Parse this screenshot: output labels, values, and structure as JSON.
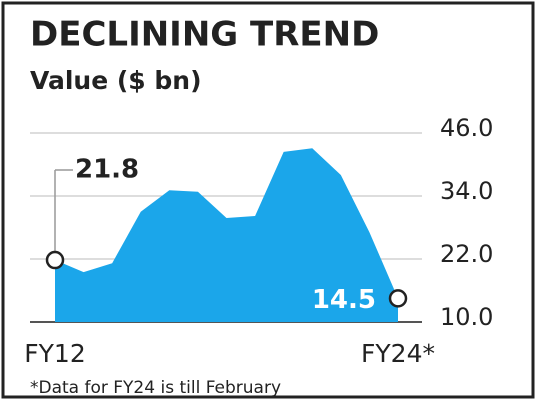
{
  "chart_data": {
    "type": "area",
    "title": "DECLINING TREND",
    "subtitle": "Value ($ bn)",
    "footnote": "*Data for FY24 is till February",
    "categories": [
      "FY12",
      null,
      null,
      null,
      null,
      null,
      null,
      null,
      null,
      null,
      null,
      null,
      "FY24*"
    ],
    "values": [
      21.8,
      19.5,
      21.2,
      31.0,
      35.1,
      34.8,
      29.8,
      30.2,
      42.4,
      43.1,
      38.0,
      27.1,
      14.5
    ],
    "color": "#1ba6ea",
    "ylim": [
      10,
      46
    ],
    "yticks": [
      {
        "value": 10,
        "label": "10.0"
      },
      {
        "value": 22,
        "label": "22.0"
      },
      {
        "value": 34,
        "label": "34.0"
      },
      {
        "value": 46,
        "label": "46.0"
      }
    ],
    "grid": true
  }
}
